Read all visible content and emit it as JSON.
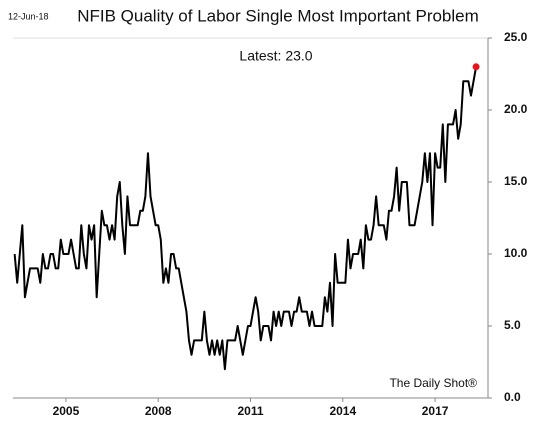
{
  "chart_data": {
    "type": "line",
    "date": "12-Jun-18",
    "title": "NFIB Quality of Labor Single Most Important Problem",
    "annotation": "Latest:  23.0",
    "source": "The Daily Shot®",
    "color": "#000000",
    "highlight_color": "#e8141b",
    "grid": false,
    "xlim": [
      2003.28,
      2018.72
    ],
    "xticks": [
      2005,
      2008,
      2011,
      2014,
      2017
    ],
    "ylim": [
      0,
      25
    ],
    "yticks": [
      {
        "value": 0,
        "label": "0.0"
      },
      {
        "value": 5,
        "label": "5.0"
      },
      {
        "value": 10,
        "label": "10.0"
      },
      {
        "value": 15,
        "label": "15.0"
      },
      {
        "value": 20,
        "label": "20.0"
      },
      {
        "value": 25,
        "label": "25.0"
      }
    ],
    "x": [
      2003.333,
      2003.417,
      2003.5,
      2003.583,
      2003.667,
      2003.75,
      2003.833,
      2003.917,
      2004,
      2004.083,
      2004.167,
      2004.25,
      2004.333,
      2004.417,
      2004.5,
      2004.583,
      2004.667,
      2004.75,
      2004.833,
      2004.917,
      2005,
      2005.083,
      2005.167,
      2005.25,
      2005.333,
      2005.417,
      2005.5,
      2005.583,
      2005.667,
      2005.75,
      2005.833,
      2005.917,
      2006,
      2006.083,
      2006.167,
      2006.25,
      2006.333,
      2006.417,
      2006.5,
      2006.583,
      2006.667,
      2006.75,
      2006.833,
      2006.917,
      2007,
      2007.083,
      2007.167,
      2007.25,
      2007.333,
      2007.417,
      2007.5,
      2007.583,
      2007.667,
      2007.75,
      2007.833,
      2007.917,
      2008,
      2008.083,
      2008.167,
      2008.25,
      2008.333,
      2008.417,
      2008.5,
      2008.583,
      2008.667,
      2008.75,
      2008.833,
      2008.917,
      2009,
      2009.083,
      2009.167,
      2009.25,
      2009.333,
      2009.417,
      2009.5,
      2009.583,
      2009.667,
      2009.75,
      2009.833,
      2009.917,
      2010,
      2010.083,
      2010.167,
      2010.25,
      2010.333,
      2010.417,
      2010.5,
      2010.583,
      2010.667,
      2010.75,
      2010.833,
      2010.917,
      2011,
      2011.083,
      2011.167,
      2011.25,
      2011.333,
      2011.417,
      2011.5,
      2011.583,
      2011.667,
      2011.75,
      2011.833,
      2011.917,
      2012,
      2012.083,
      2012.167,
      2012.25,
      2012.333,
      2012.417,
      2012.5,
      2012.583,
      2012.667,
      2012.75,
      2012.833,
      2012.917,
      2013,
      2013.083,
      2013.167,
      2013.25,
      2013.333,
      2013.417,
      2013.5,
      2013.583,
      2013.667,
      2013.75,
      2013.833,
      2013.917,
      2014,
      2014.083,
      2014.167,
      2014.25,
      2014.333,
      2014.417,
      2014.5,
      2014.583,
      2014.667,
      2014.75,
      2014.833,
      2014.917,
      2015,
      2015.083,
      2015.167,
      2015.25,
      2015.333,
      2015.417,
      2015.5,
      2015.583,
      2015.667,
      2015.75,
      2015.833,
      2015.917,
      2016,
      2016.083,
      2016.167,
      2016.25,
      2016.333,
      2016.417,
      2016.5,
      2016.583,
      2016.667,
      2016.75,
      2016.833,
      2016.917,
      2017,
      2017.083,
      2017.167,
      2017.25,
      2017.333,
      2017.417,
      2017.5,
      2017.583,
      2017.667,
      2017.75,
      2017.833,
      2017.917,
      2018,
      2018.083,
      2018.167,
      2018.25,
      2018.333
    ],
    "values": [
      10,
      8,
      10,
      12,
      7,
      8,
      9,
      9,
      9,
      9,
      8,
      10,
      9,
      9,
      10,
      10,
      9,
      9,
      11,
      10,
      10,
      10,
      11,
      10,
      9,
      9,
      12,
      10,
      9,
      12,
      11,
      12,
      7,
      10,
      13,
      12,
      12,
      11,
      12,
      11,
      14,
      15,
      12,
      10,
      14,
      12,
      12,
      12,
      12,
      13,
      13,
      14,
      17,
      14,
      13,
      12,
      12,
      11,
      8,
      9,
      8,
      10,
      10,
      9,
      9,
      8,
      7,
      6,
      4,
      3,
      4,
      4,
      4,
      4,
      6,
      4,
      3,
      4,
      3,
      4,
      3,
      4,
      2,
      4,
      4,
      4,
      4,
      5,
      4,
      3,
      4,
      5,
      5,
      6,
      7,
      6,
      4,
      5,
      5,
      5,
      4,
      6,
      5,
      6,
      5,
      6,
      6,
      6,
      5,
      6,
      6,
      7,
      6,
      6,
      6,
      5,
      6,
      5,
      5,
      5,
      5,
      7,
      6,
      8,
      5,
      10,
      8,
      8,
      8,
      8,
      11,
      9,
      10,
      10,
      10,
      11,
      9,
      12,
      11,
      11,
      12,
      14,
      12,
      12,
      12,
      11,
      13,
      13,
      14,
      16,
      13,
      15,
      15,
      15,
      12,
      12,
      12,
      13,
      14,
      15,
      17,
      15,
      17,
      12,
      17,
      16,
      16,
      19,
      15,
      19,
      19,
      19,
      20,
      18,
      19,
      22,
      22,
      22,
      21,
      22,
      23
    ]
  }
}
